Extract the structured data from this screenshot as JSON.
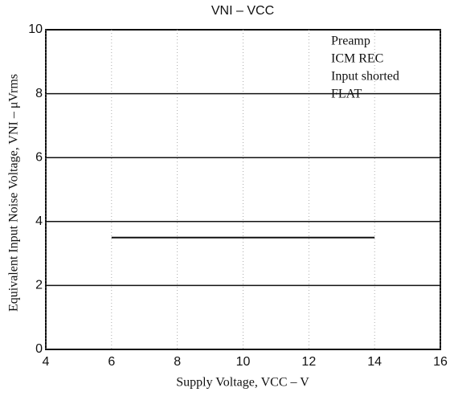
{
  "chart_data": {
    "type": "line",
    "title": "VNI – VCC",
    "x_label": "Supply Voltage, VCC – V",
    "y_label": "Equivalent Input Noise Voltage, VNI – μVrms",
    "annotations": [
      "Preamp",
      "ICM REC",
      "Input shorted",
      "FLAT"
    ],
    "x": [
      6,
      14
    ],
    "series": [
      {
        "name": "VNI",
        "color": "#111111",
        "values": [
          3.5,
          3.5
        ]
      }
    ],
    "xlim": [
      4,
      16
    ],
    "xticks": [
      4,
      6,
      8,
      10,
      12,
      14,
      16
    ],
    "ylim": [
      0,
      10
    ],
    "yticks": [
      0,
      2,
      4,
      6,
      8,
      10
    ],
    "grid": true
  }
}
